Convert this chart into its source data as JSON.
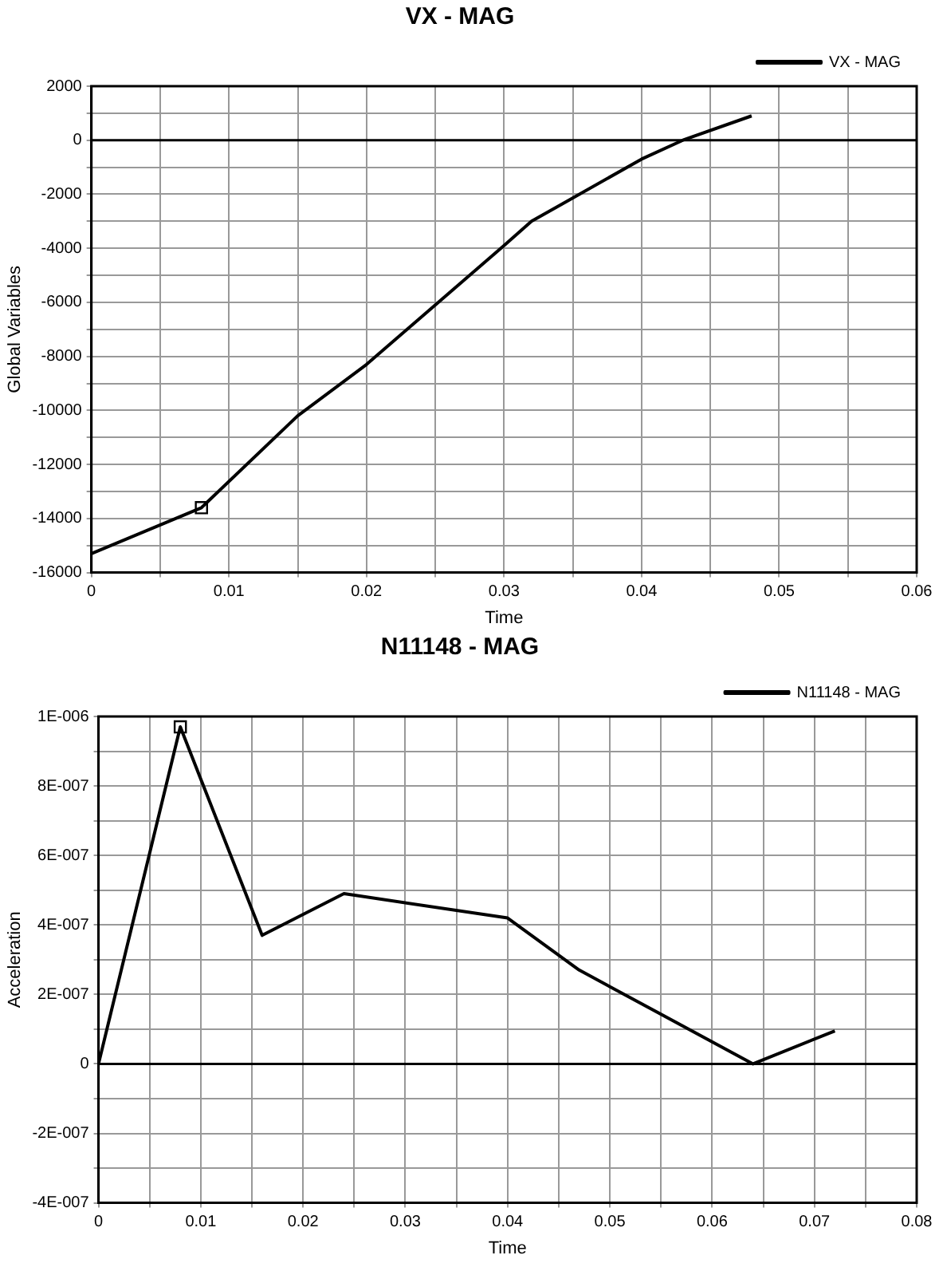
{
  "chart_data": [
    {
      "type": "line",
      "title": "VX - MAG",
      "xlabel": "Time",
      "ylabel": "Global Variables",
      "legend": "top right",
      "grid": true,
      "marker": "none",
      "line_style": "solid",
      "xlim": [
        0,
        0.06
      ],
      "xticks": [
        0,
        {
          "value": 0.005,
          "label": null
        },
        0.01,
        {
          "value": 0.015,
          "label": null
        },
        0.02,
        {
          "value": 0.025,
          "label": null
        },
        0.03,
        {
          "value": 0.035,
          "label": null
        },
        0.04,
        {
          "value": 0.045,
          "label": null
        },
        0.05,
        {
          "value": 0.055,
          "label": null
        },
        0.06
      ],
      "ylim": [
        -16000,
        2000
      ],
      "yticks": [
        -16000,
        {
          "value": -15000,
          "label": null
        },
        -14000,
        {
          "value": -13000,
          "label": null
        },
        -12000,
        {
          "value": -11000,
          "label": null
        },
        -10000,
        {
          "value": -9000,
          "label": null
        },
        -8000,
        {
          "value": -7000,
          "label": null
        },
        -6000,
        {
          "value": -5000,
          "label": null
        },
        -4000,
        {
          "value": -3000,
          "label": null
        },
        -2000,
        {
          "value": -1000,
          "label": null
        },
        0,
        {
          "value": 1000,
          "label": null
        },
        2000
      ],
      "ref_lines": [
        {
          "axis": "y",
          "value": 0,
          "color": "#000000"
        }
      ],
      "series": [
        {
          "name": "VX - MAG",
          "color": "#000000",
          "x": [
            0,
            0.008,
            0.015,
            0.02,
            0.025,
            0.03,
            0.032,
            0.04,
            0.043,
            0.048
          ],
          "values": [
            -15300,
            -13600,
            -10200,
            -8300,
            -6100,
            -3900,
            -3000,
            -700,
            0,
            900
          ]
        },
        {
          "type": "scatter",
          "marker": "square",
          "color": "#000000",
          "x": [
            0.008
          ],
          "values": [
            -13600
          ]
        }
      ]
    },
    {
      "type": "line",
      "title": "N11148 - MAG",
      "xlabel": "Time",
      "ylabel": "Acceleration",
      "legend": "top right",
      "grid": true,
      "marker": "none",
      "line_style": "solid",
      "xlim": [
        0,
        0.08
      ],
      "xticks": [
        0,
        {
          "value": 0.005,
          "label": null
        },
        0.01,
        {
          "value": 0.015,
          "label": null
        },
        0.02,
        {
          "value": 0.025,
          "label": null
        },
        0.03,
        {
          "value": 0.035,
          "label": null
        },
        0.04,
        {
          "value": 0.045,
          "label": null
        },
        0.05,
        {
          "value": 0.055,
          "label": null
        },
        0.06,
        {
          "value": 0.065,
          "label": null
        },
        0.07,
        {
          "value": 0.075,
          "label": null
        },
        0.08
      ],
      "ylim": [
        -4e-07,
        1e-06
      ],
      "yticks": [
        {
          "value": -4e-07,
          "label": "-4E-007"
        },
        {
          "value": -3e-07,
          "label": null
        },
        {
          "value": -2e-07,
          "label": "-2E-007"
        },
        {
          "value": -1e-07,
          "label": null
        },
        0,
        {
          "value": 1e-07,
          "label": null
        },
        {
          "value": 2e-07,
          "label": "2E-007"
        },
        {
          "value": 3e-07,
          "label": null
        },
        {
          "value": 4e-07,
          "label": "4E-007"
        },
        {
          "value": 5e-07,
          "label": null
        },
        {
          "value": 6e-07,
          "label": "6E-007"
        },
        {
          "value": 7e-07,
          "label": null
        },
        {
          "value": 8e-07,
          "label": "8E-007"
        },
        {
          "value": 9e-07,
          "label": null
        },
        {
          "value": 1e-06,
          "label": "1E-006"
        }
      ],
      "ref_lines": [
        {
          "axis": "y",
          "value": 0,
          "color": "#000000"
        }
      ],
      "series": [
        {
          "name": "N11148 - MAG",
          "color": "#000000",
          "x": [
            0,
            0.008,
            0.016,
            0.024,
            0.04,
            0.047,
            0.064,
            0.072
          ],
          "values": [
            0,
            9.7e-07,
            3.7e-07,
            4.9e-07,
            4.2e-07,
            2.7e-07,
            0,
            9.5e-08
          ]
        },
        {
          "type": "scatter",
          "marker": "square",
          "color": "#000000",
          "x": [
            0.008
          ],
          "values": [
            9.7e-07
          ]
        }
      ]
    }
  ]
}
